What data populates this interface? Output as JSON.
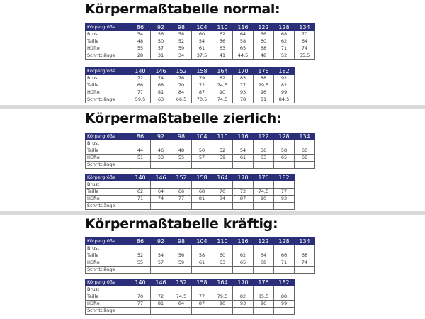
{
  "sections": [
    {
      "title": "Körpermaßtabelle normal:",
      "tables": [
        {
          "header": [
            "Körpergröße",
            "86",
            "92",
            "98",
            "104",
            "110",
            "116",
            "122",
            "128",
            "134"
          ],
          "rows": [
            {
              "label": "Brust",
              "cells": [
                "54",
                "56",
                "58",
                "60",
                "62",
                "64",
                "66",
                "68",
                "70"
              ]
            },
            {
              "label": "Taille",
              "cells": [
                "48",
                "50",
                "52",
                "54",
                "56",
                "58",
                "60",
                "62",
                "64"
              ]
            },
            {
              "label": "Hüfte",
              "cells": [
                "55",
                "57",
                "59",
                "61",
                "63",
                "65",
                "68",
                "71",
                "74"
              ]
            },
            {
              "label": "Schrittlänge",
              "cells": [
                "28",
                "31",
                "34",
                "37,5",
                "41",
                "44,5",
                "48",
                "52",
                "55,5"
              ]
            }
          ]
        },
        {
          "header": [
            "Körpergröße",
            "140",
            "146",
            "152",
            "158",
            "164",
            "170",
            "176",
            "182"
          ],
          "rows": [
            {
              "label": "Brust",
              "cells": [
                "72",
                "74",
                "76",
                "79",
                "82",
                "85",
                "88",
                "92"
              ]
            },
            {
              "label": "Taille",
              "cells": [
                "66",
                "68",
                "70",
                "72",
                "74,5",
                "77",
                "79,5",
                "82"
              ]
            },
            {
              "label": "Hüfte",
              "cells": [
                "77",
                "81",
                "84",
                "87",
                "90",
                "93",
                "96",
                "99"
              ]
            },
            {
              "label": "Schrittlänge",
              "cells": [
                "59,5",
                "63",
                "66,5",
                "70,5",
                "74,5",
                "78",
                "81",
                "84,5"
              ]
            }
          ]
        }
      ]
    },
    {
      "title": "Körpermaßtabelle zierlich:",
      "tables": [
        {
          "header": [
            "Körpergröße",
            "86",
            "92",
            "98",
            "104",
            "110",
            "116",
            "122",
            "128",
            "134"
          ],
          "rows": [
            {
              "label": "Brust"
            },
            {
              "label": "Taille",
              "cells": [
                "44",
                "46",
                "48",
                "50",
                "52",
                "54",
                "56",
                "58",
                "60"
              ]
            },
            {
              "label": "Hüfte",
              "cells": [
                "51",
                "53",
                "55",
                "57",
                "59",
                "61",
                "63",
                "65",
                "68"
              ]
            },
            {
              "label": "Schrittlänge"
            }
          ]
        },
        {
          "header": [
            "Körpergröße",
            "140",
            "146",
            "152",
            "158",
            "164",
            "170",
            "176",
            "182"
          ],
          "rows": [
            {
              "label": "Brust"
            },
            {
              "label": "Taille",
              "cells": [
                "62",
                "64",
                "66",
                "68",
                "70",
                "72",
                "74,5",
                "77"
              ]
            },
            {
              "label": "Hüfte",
              "cells": [
                "71",
                "74",
                "77",
                "81",
                "84",
                "87",
                "90",
                "93"
              ]
            },
            {
              "label": "Schrittlänge"
            }
          ]
        }
      ]
    },
    {
      "title": "Körpermaßtabelle kräftig:",
      "tables": [
        {
          "header": [
            "Körpergröße",
            "86",
            "92",
            "98",
            "104",
            "110",
            "116",
            "122",
            "128",
            "134"
          ],
          "rows": [
            {
              "label": "Brust"
            },
            {
              "label": "Taille",
              "cells": [
                "52",
                "54",
                "56",
                "58",
                "60",
                "62",
                "64",
                "66",
                "68"
              ]
            },
            {
              "label": "Hüfte",
              "cells": [
                "55",
                "57",
                "59",
                "61",
                "63",
                "65",
                "68",
                "71",
                "74"
              ]
            },
            {
              "label": "Schrittlänge"
            }
          ]
        },
        {
          "header": [
            "Körpergröße",
            "140",
            "146",
            "152",
            "158",
            "164",
            "170",
            "176",
            "182"
          ],
          "rows": [
            {
              "label": "Brust"
            },
            {
              "label": "Taille",
              "cells": [
                "70",
                "72",
                "74,5",
                "77",
                "79,5",
                "82",
                "85,5",
                "88"
              ]
            },
            {
              "label": "Hüfte",
              "cells": [
                "77",
                "81",
                "84",
                "87",
                "90",
                "93",
                "96",
                "99"
              ]
            },
            {
              "label": "Schrittlänge"
            }
          ]
        }
      ]
    }
  ]
}
